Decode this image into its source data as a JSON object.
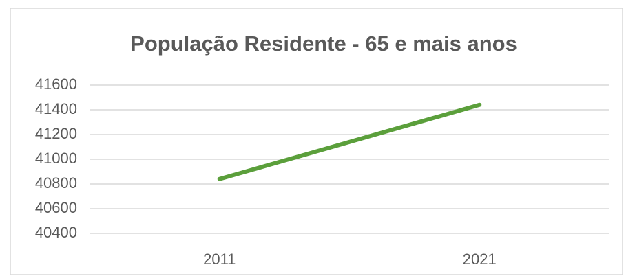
{
  "chart_data": {
    "type": "line",
    "title": "População Residente - 65 e mais anos",
    "categories": [
      "2011",
      "2021"
    ],
    "series": [
      {
        "name": "65 e mais anos",
        "color": "#5b9f3b",
        "values": [
          40840,
          41440
        ]
      }
    ],
    "ylim": [
      40400,
      41600
    ],
    "yticks": [
      40400,
      40600,
      40800,
      41000,
      41200,
      41400,
      41600
    ],
    "grid": true
  }
}
